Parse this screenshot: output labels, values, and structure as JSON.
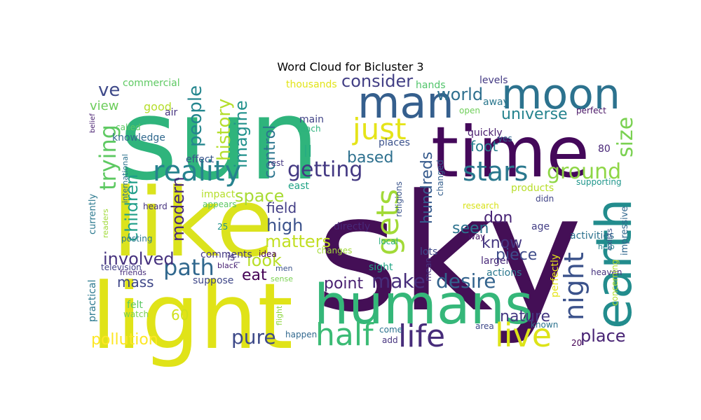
{
  "chart_data": {
    "type": "wordcloud",
    "title": "Word Cloud for Bicluster 3",
    "palette": "viridis",
    "words": [
      {
        "text": "sky",
        "weight": 1.0,
        "color": "#440f56"
      },
      {
        "text": "sun",
        "weight": 0.66,
        "color": "#2fb47c"
      },
      {
        "text": "light",
        "weight": 0.62,
        "color": "#e0e318"
      },
      {
        "text": "like",
        "weight": 0.5,
        "color": "#dbe31d"
      },
      {
        "text": "time",
        "weight": 0.45,
        "color": "#44085a"
      },
      {
        "text": "humans",
        "weight": 0.42,
        "color": "#35b779"
      },
      {
        "text": "earth",
        "weight": 0.4,
        "color": "#228c8d"
      },
      {
        "text": "moon",
        "weight": 0.38,
        "color": "#2c728e"
      },
      {
        "text": "man",
        "weight": 0.36,
        "color": "#355f8d"
      },
      {
        "text": "reality",
        "weight": 0.27,
        "color": "#26828e"
      },
      {
        "text": "just",
        "weight": 0.26,
        "color": "#e5e419"
      },
      {
        "text": "live",
        "weight": 0.25,
        "color": "#dde318"
      },
      {
        "text": "half",
        "weight": 0.24,
        "color": "#3bbb75"
      },
      {
        "text": "life",
        "weight": 0.24,
        "color": "#472c7a"
      },
      {
        "text": "gets",
        "weight": 0.22,
        "color": "#a2da37"
      },
      {
        "text": "stars",
        "weight": 0.22,
        "color": "#2a788e"
      },
      {
        "text": "night",
        "weight": 0.2,
        "color": "#3b528b"
      },
      {
        "text": "ground",
        "weight": 0.18,
        "color": "#8ed645"
      },
      {
        "text": "getting",
        "weight": 0.17,
        "color": "#443983"
      },
      {
        "text": "trying",
        "weight": 0.16,
        "color": "#5ec962"
      },
      {
        "text": "path",
        "weight": 0.16,
        "color": "#31688e"
      },
      {
        "text": "size",
        "weight": 0.16,
        "color": "#7ad151"
      },
      {
        "text": "desire",
        "weight": 0.15,
        "color": "#33638d"
      },
      {
        "text": "pure",
        "weight": 0.15,
        "color": "#3e4a89"
      },
      {
        "text": "make",
        "weight": 0.15,
        "color": "#472d7b"
      },
      {
        "text": "world",
        "weight": 0.14,
        "color": "#2e6f8e"
      },
      {
        "text": "consider",
        "weight": 0.14,
        "color": "#423f85"
      },
      {
        "text": "place",
        "weight": 0.13,
        "color": "#482374"
      },
      {
        "text": "pollution",
        "weight": 0.13,
        "color": "#fde725"
      },
      {
        "text": "history",
        "weight": 0.13,
        "color": "#b5de2b"
      },
      {
        "text": "people",
        "weight": 0.13,
        "color": "#24868e"
      },
      {
        "text": "imagine",
        "weight": 0.13,
        "color": "#21918c"
      },
      {
        "text": "children",
        "weight": 0.13,
        "color": "#1f9e89"
      },
      {
        "text": "based",
        "weight": 0.12,
        "color": "#2d708e"
      },
      {
        "text": "universe",
        "weight": 0.12,
        "color": "#25838e"
      },
      {
        "text": "matters",
        "weight": 0.12,
        "color": "#c2df23"
      },
      {
        "text": "space",
        "weight": 0.12,
        "color": "#a8db34"
      },
      {
        "text": "involved",
        "weight": 0.12,
        "color": "#46327e"
      },
      {
        "text": "modern",
        "weight": 0.12,
        "color": "#482878"
      },
      {
        "text": "control",
        "weight": 0.12,
        "color": "#2b758e"
      },
      {
        "text": "hundreds",
        "weight": 0.12,
        "color": "#375b8d"
      },
      {
        "text": "point",
        "weight": 0.11,
        "color": "#481f70"
      },
      {
        "text": "know",
        "weight": 0.11,
        "color": "#453781"
      },
      {
        "text": "nature",
        "weight": 0.11,
        "color": "#453882"
      },
      {
        "text": "look",
        "weight": 0.11,
        "color": "#b8de29"
      },
      {
        "text": "high",
        "weight": 0.11,
        "color": "#3b528b"
      },
      {
        "text": "seen",
        "weight": 0.11,
        "color": "#2c728e"
      },
      {
        "text": "ve",
        "weight": 0.11,
        "color": "#3e4989"
      },
      {
        "text": "eat",
        "weight": 0.1,
        "color": "#440154"
      },
      {
        "text": "piece",
        "weight": 0.1,
        "color": "#3e4c8a"
      },
      {
        "text": "mass",
        "weight": 0.09,
        "color": "#3f4788"
      },
      {
        "text": "don",
        "weight": 0.09,
        "color": "#482475"
      },
      {
        "text": "foot",
        "weight": 0.09,
        "color": "#277f8e"
      },
      {
        "text": "field",
        "weight": 0.09,
        "color": "#433e85"
      },
      {
        "text": "view",
        "weight": 0.08,
        "color": "#6ccd5a"
      },
      {
        "text": "ll",
        "weight": 0.08,
        "color": "#27ad81"
      },
      {
        "text": "60",
        "weight": 0.08,
        "color": "#d0e11c"
      },
      {
        "text": "commercial",
        "weight": 0.06,
        "color": "#5ec962"
      },
      {
        "text": "good",
        "weight": 0.06,
        "color": "#b5de2b"
      },
      {
        "text": "thousands",
        "weight": 0.06,
        "color": "#e2e418"
      },
      {
        "text": "hands",
        "weight": 0.05,
        "color": "#50c46a"
      },
      {
        "text": "levels",
        "weight": 0.05,
        "color": "#443a83"
      },
      {
        "text": "air",
        "weight": 0.05,
        "color": "#46337f"
      },
      {
        "text": "away",
        "weight": 0.05,
        "color": "#2a778e"
      },
      {
        "text": "main",
        "weight": 0.05,
        "color": "#414487"
      },
      {
        "text": "quickly",
        "weight": 0.05,
        "color": "#481b6d"
      },
      {
        "text": "knowledge",
        "weight": 0.05,
        "color": "#30698e"
      },
      {
        "text": "called",
        "weight": 0.04,
        "color": "#5cc863"
      },
      {
        "text": "open",
        "weight": 0.04,
        "color": "#6ece58"
      },
      {
        "text": "perfect",
        "weight": 0.04,
        "color": "#471365"
      },
      {
        "text": "reach",
        "weight": 0.04,
        "color": "#2db27d"
      },
      {
        "text": "yes",
        "weight": 0.04,
        "color": "#31688e"
      },
      {
        "text": "belief",
        "weight": 0.035,
        "color": "#481f70"
      },
      {
        "text": "places",
        "weight": 0.045,
        "color": "#3b528b"
      },
      {
        "text": "effect",
        "weight": 0.045,
        "color": "#39568c"
      },
      {
        "text": "rest",
        "weight": 0.04,
        "color": "#453781"
      },
      {
        "text": "80",
        "weight": 0.045,
        "color": "#482677"
      },
      {
        "text": "east",
        "weight": 0.045,
        "color": "#20a386"
      },
      {
        "text": "religions",
        "weight": 0.045,
        "color": "#3a538b"
      },
      {
        "text": "changed",
        "weight": 0.04,
        "color": "#355f8d"
      },
      {
        "text": "products",
        "weight": 0.045,
        "color": "#b8de29"
      },
      {
        "text": "supporting",
        "weight": 0.04,
        "color": "#1f968b"
      },
      {
        "text": "international",
        "weight": 0.035,
        "color": "#2c728e"
      },
      {
        "text": "impact",
        "weight": 0.045,
        "color": "#b5de2b"
      },
      {
        "text": "appears",
        "weight": 0.04,
        "color": "#5cc863"
      },
      {
        "text": "heard",
        "weight": 0.04,
        "color": "#46327e"
      },
      {
        "text": "currently",
        "weight": 0.045,
        "color": "#2a788e"
      },
      {
        "text": "readers",
        "weight": 0.035,
        "color": "#a0da39"
      },
      {
        "text": "directly",
        "weight": 0.045,
        "color": "#482878"
      },
      {
        "text": "research",
        "weight": 0.04,
        "color": "#d8e219"
      },
      {
        "text": "didn",
        "weight": 0.04,
        "color": "#414487"
      },
      {
        "text": "age",
        "weight": 0.045,
        "color": "#433e85"
      },
      {
        "text": "way",
        "weight": 0.035,
        "color": "#481668"
      },
      {
        "text": "activities",
        "weight": 0.045,
        "color": "#2c728e"
      },
      {
        "text": "impressive",
        "weight": 0.045,
        "color": "#31688e"
      },
      {
        "text": "exists",
        "weight": 0.035,
        "color": "#3b528b"
      },
      {
        "text": "25",
        "weight": 0.04,
        "color": "#21918c"
      },
      {
        "text": "posting",
        "weight": 0.04,
        "color": "#2a788e"
      },
      {
        "text": "comments",
        "weight": 0.045,
        "color": "#443983"
      },
      {
        "text": "is_",
        "weight": 0.045,
        "color": "#46337f"
      },
      {
        "text": "idea",
        "weight": 0.04,
        "color": "#440154"
      },
      {
        "text": "local",
        "weight": 0.04,
        "color": "#29af7f"
      },
      {
        "text": "help",
        "weight": 0.035,
        "color": "#26828e"
      },
      {
        "text": "lots",
        "weight": 0.045,
        "color": "#3e4989"
      },
      {
        "text": "changes",
        "weight": 0.04,
        "color": "#a2da37"
      },
      {
        "text": "television",
        "weight": 0.04,
        "color": "#424086"
      },
      {
        "text": "friends",
        "weight": 0.035,
        "color": "#472d7b"
      },
      {
        "text": "black",
        "weight": 0.035,
        "color": "#482173"
      },
      {
        "text": "men",
        "weight": 0.035,
        "color": "#3b528b"
      },
      {
        "text": "suppose",
        "weight": 0.045,
        "color": "#3f4788"
      },
      {
        "text": "larger",
        "weight": 0.045,
        "color": "#482878"
      },
      {
        "text": "heaven",
        "weight": 0.04,
        "color": "#46327e"
      },
      {
        "text": "sense",
        "weight": 0.035,
        "color": "#7ad151"
      },
      {
        "text": "sight",
        "weight": 0.045,
        "color": "#21a685"
      },
      {
        "text": "actions",
        "weight": 0.045,
        "color": "#2a788e"
      },
      {
        "text": "concerning",
        "weight": 0.04,
        "color": "#b5de2b"
      },
      {
        "text": "practical",
        "weight": 0.045,
        "color": "#2a788e"
      },
      {
        "text": "felt",
        "weight": 0.045,
        "color": "#5cc863"
      },
      {
        "text": "mean",
        "weight": 0.035,
        "color": "#46327e"
      },
      {
        "text": "perfectly",
        "weight": 0.045,
        "color": "#e5e419"
      },
      {
        "text": "watch",
        "weight": 0.04,
        "color": "#7ad151"
      },
      {
        "text": "flight",
        "weight": 0.035,
        "color": "#90d743"
      },
      {
        "text": "known",
        "weight": 0.04,
        "color": "#2c728e"
      },
      {
        "text": "area",
        "weight": 0.04,
        "color": "#3e4989"
      },
      {
        "text": "come",
        "weight": 0.045,
        "color": "#2c728e"
      },
      {
        "text": "add",
        "weight": 0.04,
        "color": "#46337f"
      },
      {
        "text": "happen",
        "weight": 0.04,
        "color": "#31688e"
      },
      {
        "text": "20",
        "weight": 0.04,
        "color": "#440154"
      }
    ]
  }
}
